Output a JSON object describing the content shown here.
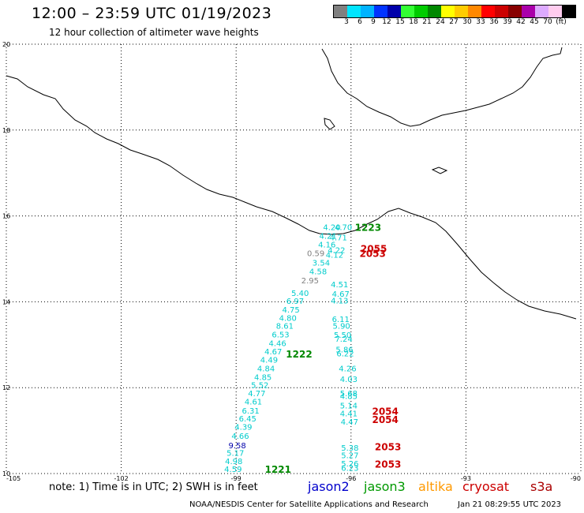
{
  "header": {
    "title": "12:00 – 23:59 UTC 01/19/2023",
    "subtitle": "12 hour collection of altimeter wave heights"
  },
  "colorbar": {
    "unit": "(ft)",
    "colors": [
      "#808080",
      "#00e5ff",
      "#00b3ff",
      "#0033ff",
      "#0000aa",
      "#33ff33",
      "#00cc00",
      "#008800",
      "#ffff00",
      "#ffcc00",
      "#ff8800",
      "#ff0000",
      "#cc0000",
      "#880000",
      "#aa00aa",
      "#ddaaff",
      "#ffccee",
      "#000000"
    ],
    "labels": [
      "3",
      "6",
      "9",
      "12",
      "15",
      "18",
      "21",
      "24",
      "27",
      "30",
      "33",
      "36",
      "39",
      "42",
      "45",
      "70"
    ]
  },
  "axes": {
    "lat_ticks": [
      "20",
      "18",
      "16",
      "14",
      "12",
      "10"
    ],
    "lon_ticks": [
      "-105",
      "-102",
      "-99",
      "-96",
      "-93",
      "-90"
    ]
  },
  "observations": [
    {
      "v": "4.20",
      "c": "#00cccc",
      "lon": -96.5,
      "lat": 15.67
    },
    {
      "v": "4.70",
      "c": "#00cccc",
      "lon": -96.2,
      "lat": 15.67
    },
    {
      "v": "4.21",
      "c": "#00cccc",
      "lon": -96.6,
      "lat": 15.47
    },
    {
      "v": "4.71",
      "c": "#00cccc",
      "lon": -96.33,
      "lat": 15.43
    },
    {
      "v": "4.16",
      "c": "#00cccc",
      "lon": -96.63,
      "lat": 15.27
    },
    {
      "v": "4.22",
      "c": "#00cccc",
      "lon": -96.38,
      "lat": 15.14
    },
    {
      "v": "0.59",
      "c": "#808080",
      "lon": -96.92,
      "lat": 15.06
    },
    {
      "v": "4.12",
      "c": "#00cccc",
      "lon": -96.43,
      "lat": 15.03
    },
    {
      "v": "3.54",
      "c": "#00cccc",
      "lon": -96.78,
      "lat": 14.84
    },
    {
      "v": "4.58",
      "c": "#00cccc",
      "lon": -96.86,
      "lat": 14.64
    },
    {
      "v": "2.95",
      "c": "#808080",
      "lon": -97.07,
      "lat": 14.43
    },
    {
      "v": "4.51",
      "c": "#00cccc",
      "lon": -96.3,
      "lat": 14.34
    },
    {
      "v": "5.40",
      "c": "#00cccc",
      "lon": -97.33,
      "lat": 14.14
    },
    {
      "v": "4.67",
      "c": "#00cccc",
      "lon": -96.27,
      "lat": 14.12
    },
    {
      "v": "6.97",
      "c": "#00cccc",
      "lon": -97.46,
      "lat": 13.95
    },
    {
      "v": "4.13",
      "c": "#00cccc",
      "lon": -96.3,
      "lat": 13.96
    },
    {
      "v": "4.75",
      "c": "#00cccc",
      "lon": -97.57,
      "lat": 13.75
    },
    {
      "v": "4.80",
      "c": "#00cccc",
      "lon": -97.65,
      "lat": 13.56
    },
    {
      "v": "6.11",
      "c": "#00cccc",
      "lon": -96.27,
      "lat": 13.53
    },
    {
      "v": "8.61",
      "c": "#00cccc",
      "lon": -97.73,
      "lat": 13.37
    },
    {
      "v": "5.90",
      "c": "#00cccc",
      "lon": -96.25,
      "lat": 13.37
    },
    {
      "v": "6.53",
      "c": "#00cccc",
      "lon": -97.84,
      "lat": 13.17
    },
    {
      "v": "5.50",
      "c": "#00cccc",
      "lon": -96.22,
      "lat": 13.16
    },
    {
      "v": "7.24",
      "c": "#00cccc",
      "lon": -96.19,
      "lat": 13.07
    },
    {
      "v": "4.46",
      "c": "#00cccc",
      "lon": -97.92,
      "lat": 12.97
    },
    {
      "v": "4.67",
      "c": "#00cccc",
      "lon": -98.03,
      "lat": 12.78
    },
    {
      "v": "5.86",
      "c": "#00cccc",
      "lon": -96.17,
      "lat": 12.82
    },
    {
      "v": "6.22",
      "c": "#00cccc",
      "lon": -96.15,
      "lat": 12.73
    },
    {
      "v": "4.49",
      "c": "#00cccc",
      "lon": -98.14,
      "lat": 12.58
    },
    {
      "v": "4.84",
      "c": "#00cccc",
      "lon": -98.22,
      "lat": 12.38
    },
    {
      "v": "4.26",
      "c": "#00cccc",
      "lon": -96.09,
      "lat": 12.38
    },
    {
      "v": "4.85",
      "c": "#00cccc",
      "lon": -98.3,
      "lat": 12.18
    },
    {
      "v": "4.03",
      "c": "#00cccc",
      "lon": -96.06,
      "lat": 12.13
    },
    {
      "v": "5.52",
      "c": "#00cccc",
      "lon": -98.38,
      "lat": 11.99
    },
    {
      "v": "4.77",
      "c": "#00cccc",
      "lon": -98.46,
      "lat": 11.8
    },
    {
      "v": "5.68",
      "c": "#00cccc",
      "lon": -96.06,
      "lat": 11.8
    },
    {
      "v": "4.85",
      "c": "#00cccc",
      "lon": -96.06,
      "lat": 11.74
    },
    {
      "v": "4.61",
      "c": "#00cccc",
      "lon": -98.55,
      "lat": 11.61
    },
    {
      "v": "5.14",
      "c": "#00cccc",
      "lon": -96.06,
      "lat": 11.52
    },
    {
      "v": "6.31",
      "c": "#00cccc",
      "lon": -98.62,
      "lat": 11.4
    },
    {
      "v": "4.41",
      "c": "#00cccc",
      "lon": -96.06,
      "lat": 11.33
    },
    {
      "v": "6.45",
      "c": "#00cccc",
      "lon": -98.7,
      "lat": 11.21
    },
    {
      "v": "4.47",
      "c": "#00cccc",
      "lon": -96.04,
      "lat": 11.14
    },
    {
      "v": "4.39",
      "c": "#00cccc",
      "lon": -98.81,
      "lat": 11.02
    },
    {
      "v": "4.66",
      "c": "#00cccc",
      "lon": -98.89,
      "lat": 10.81
    },
    {
      "v": "9.58",
      "c": "#0000aa",
      "lon": -98.97,
      "lat": 10.59
    },
    {
      "v": "5.38",
      "c": "#00cccc",
      "lon": -96.03,
      "lat": 10.53
    },
    {
      "v": "5.17",
      "c": "#00cccc",
      "lon": -99.02,
      "lat": 10.41
    },
    {
      "v": "5.27",
      "c": "#00cccc",
      "lon": -96.03,
      "lat": 10.36
    },
    {
      "v": "4.98",
      "c": "#00cccc",
      "lon": -99.06,
      "lat": 10.22
    },
    {
      "v": "5.26",
      "c": "#00cccc",
      "lon": -96.03,
      "lat": 10.17
    },
    {
      "v": "4.59",
      "c": "#00cccc",
      "lon": -99.08,
      "lat": 10.04
    },
    {
      "v": "6.23",
      "c": "#00cccc",
      "lon": -96.03,
      "lat": 10.06
    }
  ],
  "passes": [
    {
      "t": "1223",
      "c": "#008800",
      "lon": -95.9,
      "lat": 15.65
    },
    {
      "t": "2055",
      "c": "#cc0000",
      "lon": -95.75,
      "lat": 15.16
    },
    {
      "t": "2053",
      "c": "#cc0000",
      "lon": -95.78,
      "lat": 15.05
    },
    {
      "t": "1222",
      "c": "#008800",
      "lon": -97.7,
      "lat": 12.7
    },
    {
      "t": "2054",
      "c": "#cc0000",
      "lon": -95.45,
      "lat": 11.37
    },
    {
      "t": "2054",
      "c": "#cc0000",
      "lon": -95.45,
      "lat": 11.18
    },
    {
      "t": "2053",
      "c": "#cc0000",
      "lon": -95.38,
      "lat": 10.54
    },
    {
      "t": "2053",
      "c": "#cc0000",
      "lon": -95.38,
      "lat": 10.14
    },
    {
      "t": "1221",
      "c": "#008800",
      "lon": -98.25,
      "lat": 10.02
    }
  ],
  "footer": {
    "note": "note:  1) Time is in UTC;  2) SWH is in feet",
    "satellites": [
      {
        "name": "jason2",
        "color": "#0000cc"
      },
      {
        "name": "jason3",
        "color": "#009900"
      },
      {
        "name": "altika",
        "color": "#ff9900"
      },
      {
        "name": "cryosat",
        "color": "#cc0000"
      },
      {
        "name": "s3a",
        "color": "#aa0000"
      }
    ],
    "credit": "NOAA/NESDIS Center for Satellite Applications and Research",
    "timestamp": "Jan 21 08:29:55 UTC 2023"
  }
}
